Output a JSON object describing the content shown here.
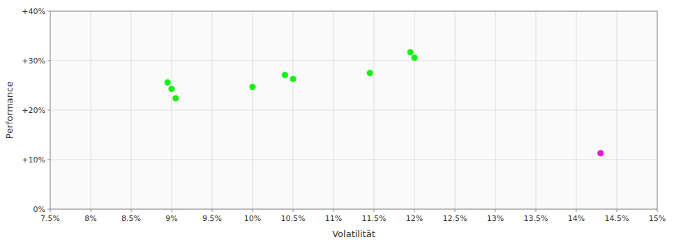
{
  "chart_data": {
    "type": "scatter",
    "xlabel": "Volatilität",
    "ylabel": "Performance",
    "xlim": [
      0.075,
      0.15
    ],
    "ylim": [
      0.0,
      0.4
    ],
    "xticks": [
      {
        "value": 0.075,
        "label": "7.5%"
      },
      {
        "value": 0.08,
        "label": "8%"
      },
      {
        "value": 0.085,
        "label": "8.5%"
      },
      {
        "value": 0.09,
        "label": "9%"
      },
      {
        "value": 0.095,
        "label": "9.5%"
      },
      {
        "value": 0.1,
        "label": "10%"
      },
      {
        "value": 0.105,
        "label": "10.5%"
      },
      {
        "value": 0.11,
        "label": "11%"
      },
      {
        "value": 0.115,
        "label": "11.5%"
      },
      {
        "value": 0.12,
        "label": "12%"
      },
      {
        "value": 0.125,
        "label": "12.5%"
      },
      {
        "value": 0.13,
        "label": "13%"
      },
      {
        "value": 0.135,
        "label": "13.5%"
      },
      {
        "value": 0.14,
        "label": "14%"
      },
      {
        "value": 0.145,
        "label": "14.5%"
      },
      {
        "value": 0.15,
        "label": "15%"
      }
    ],
    "yticks": [
      {
        "value": 0.0,
        "label": "0%"
      },
      {
        "value": 0.1,
        "label": "+10%"
      },
      {
        "value": 0.2,
        "label": "+20%"
      },
      {
        "value": 0.3,
        "label": "+30%"
      },
      {
        "value": 0.4,
        "label": "+40%"
      }
    ],
    "grid": true,
    "series": [
      {
        "color": "#00ee00",
        "x": [
          0.0895,
          0.09,
          0.0905,
          0.1,
          0.104,
          0.105,
          0.1145,
          0.1195,
          0.12
        ],
        "values": [
          0.256,
          0.243,
          0.224,
          0.247,
          0.271,
          0.263,
          0.275,
          0.317,
          0.306
        ]
      },
      {
        "color": "#dd00dd",
        "x": [
          0.143
        ],
        "values": [
          0.113
        ]
      }
    ]
  }
}
